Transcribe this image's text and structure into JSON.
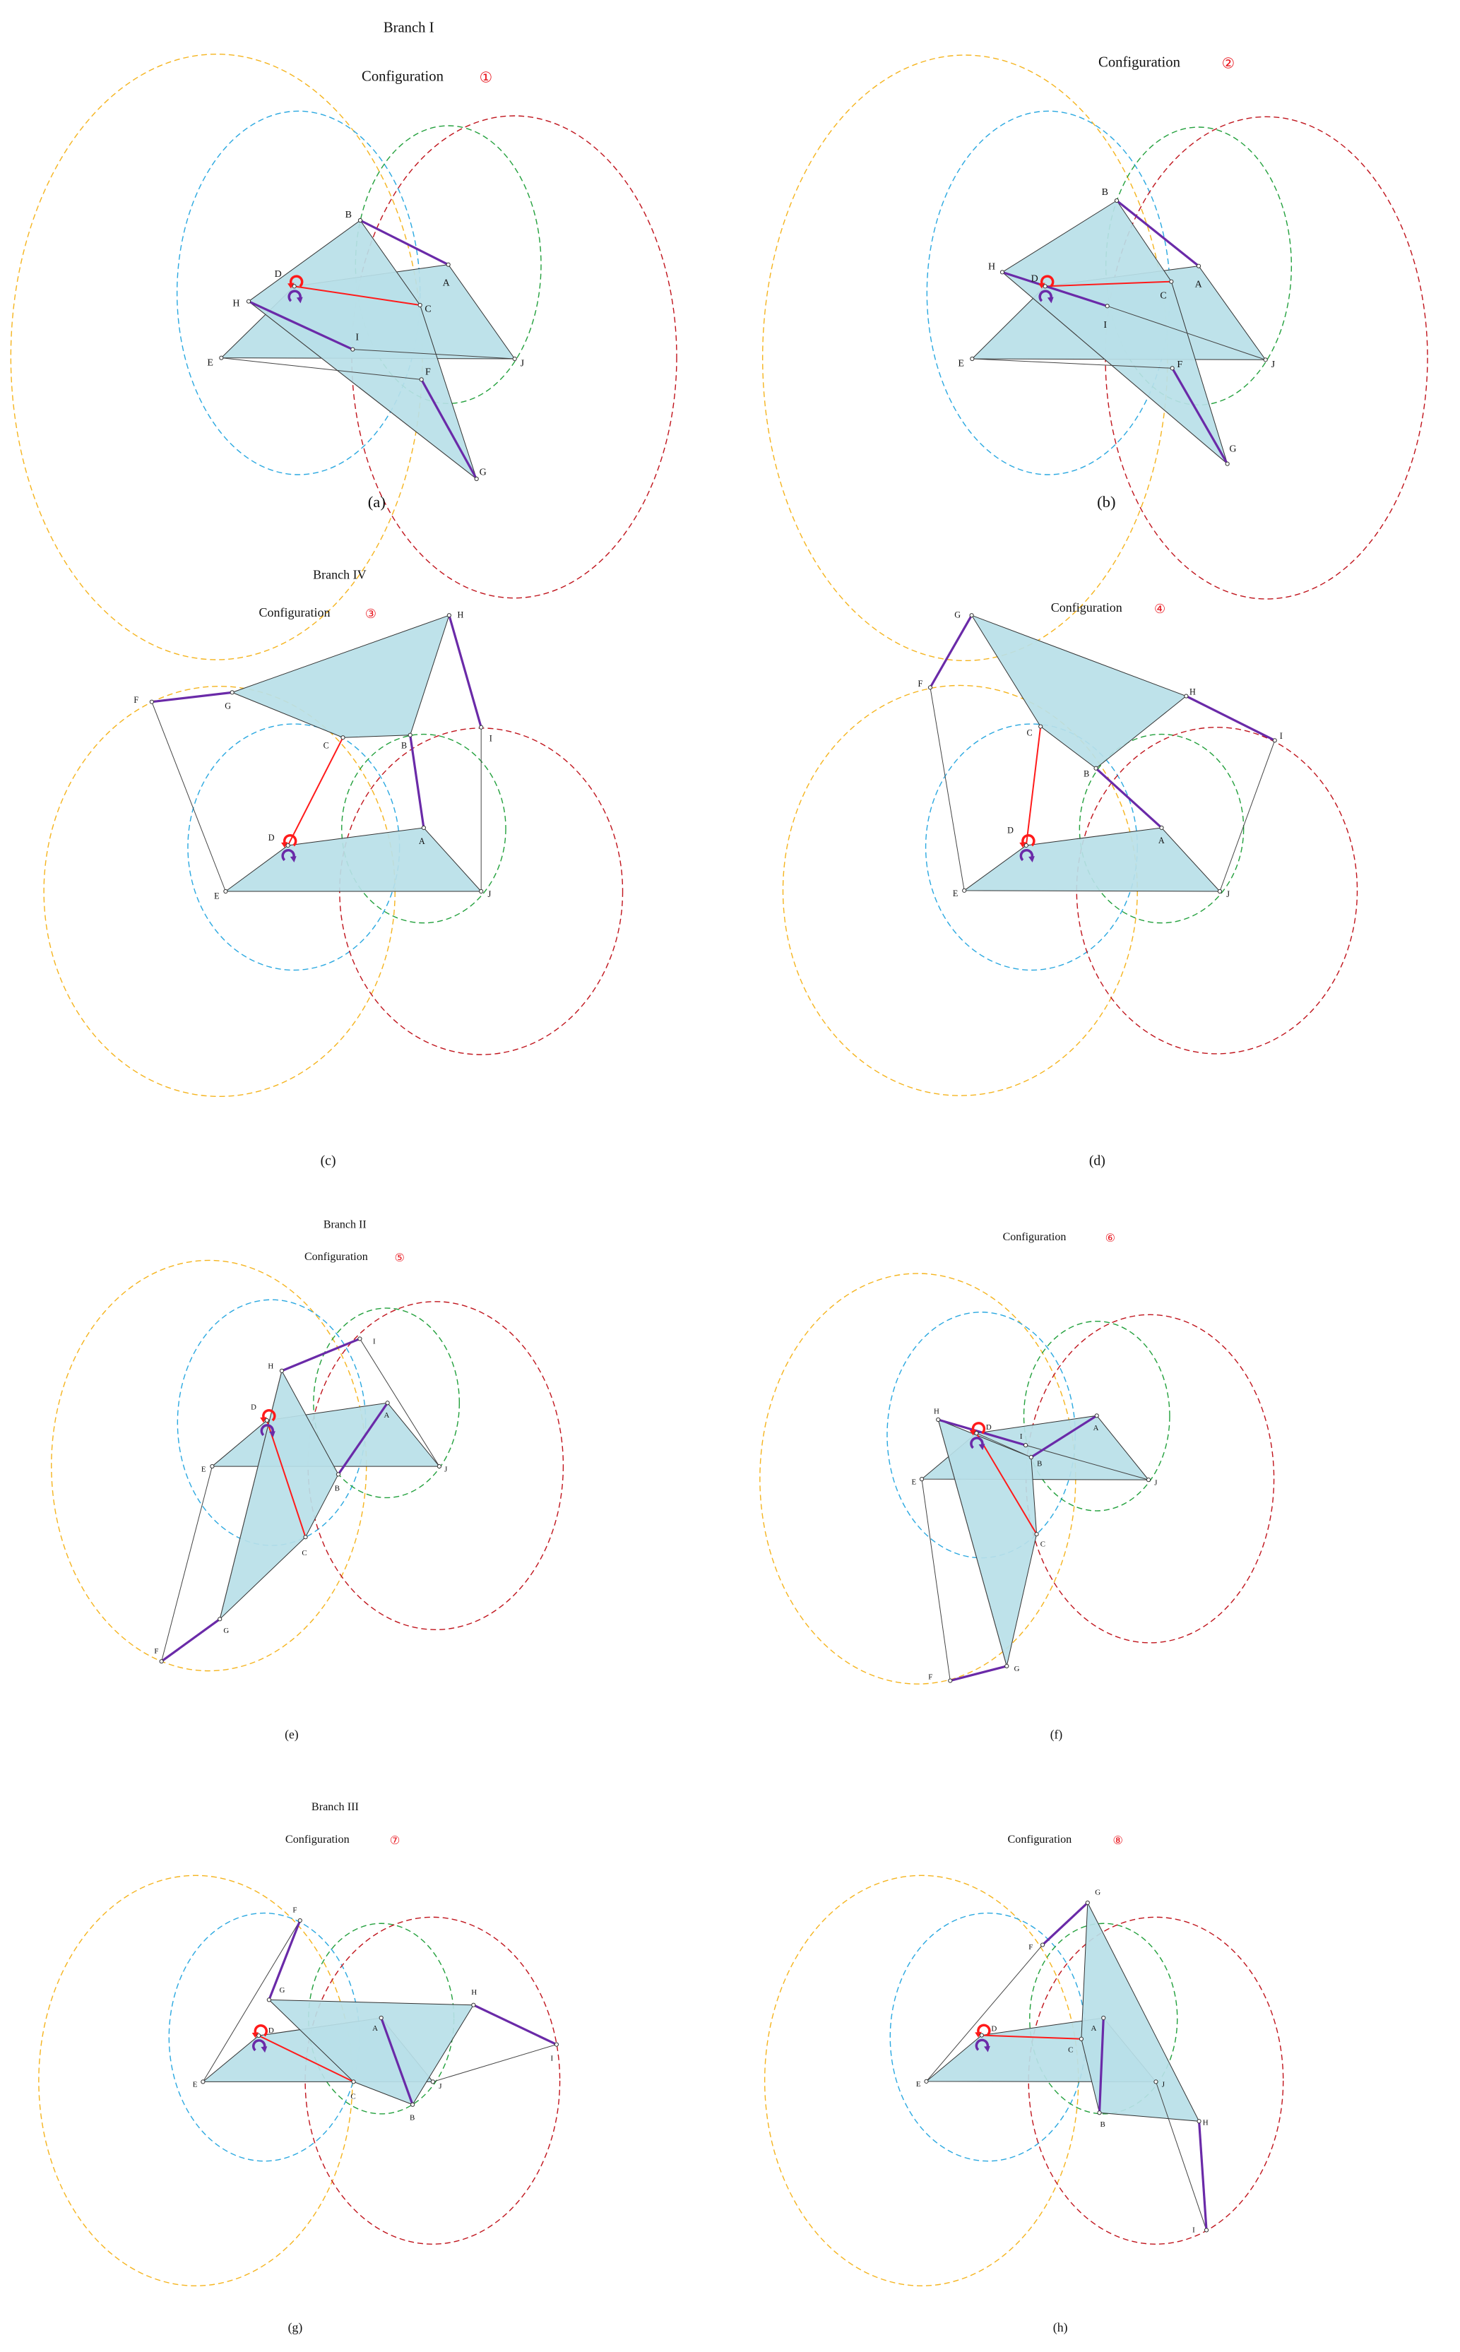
{
  "figure": {
    "colors": {
      "link_fill": "#b8dfe8",
      "driver_link": "#ff1a1a",
      "binary_link": "#6a2aa8",
      "circle_yellow": "#f5b41e",
      "circle_blue": "#2aa8e0",
      "circle_green": "#22a03c",
      "circle_red": "#c0141c",
      "number_red": "#e8141c"
    },
    "panels": [
      {
        "caption": "(a)",
        "branch": "Branch I",
        "config_label": "Configuration",
        "config_number": "①"
      },
      {
        "caption": "(b)",
        "branch": "",
        "config_label": "Configuration",
        "config_number": "②"
      },
      {
        "caption": "(c)",
        "branch": "Branch IV",
        "config_label": "Configuration",
        "config_number": "③"
      },
      {
        "caption": "(d)",
        "branch": "",
        "config_label": "Configuration",
        "config_number": "④"
      },
      {
        "caption": "(e)",
        "branch": "Branch II",
        "config_label": "Configuration",
        "config_number": "⑤"
      },
      {
        "caption": "(f)",
        "branch": "",
        "config_label": "Configuration",
        "config_number": "⑥"
      },
      {
        "caption": "(g)",
        "branch": "Branch III",
        "config_label": "Configuration",
        "config_number": "⑦"
      },
      {
        "caption": "(h)",
        "branch": "",
        "config_label": "Configuration",
        "config_number": "⑧"
      }
    ],
    "joint_labels": [
      "A",
      "B",
      "C",
      "D",
      "E",
      "F",
      "G",
      "H",
      "I",
      "J"
    ],
    "icons": [
      "counterclockwise-arrow-icon",
      "clockwise-arrow-icon"
    ]
  }
}
